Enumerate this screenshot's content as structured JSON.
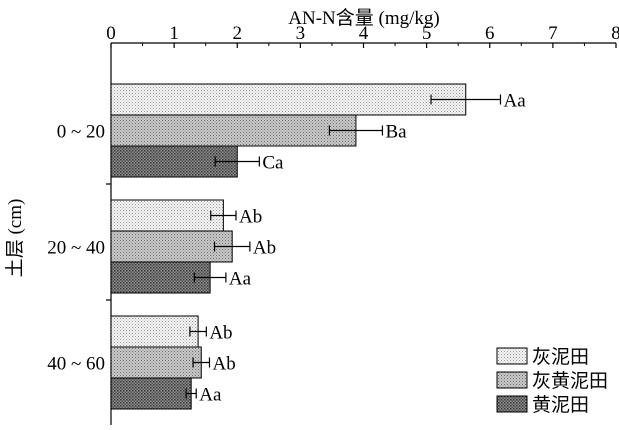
{
  "chart_data": {
    "type": "bar",
    "orientation": "horizontal",
    "title": "",
    "xlabel": "AN-N含量 (mg/kg)",
    "ylabel": "土层 (cm)",
    "xlim": [
      0,
      8
    ],
    "xticks": [
      "0",
      "1",
      "2",
      "3",
      "4",
      "5",
      "6",
      "7",
      "8"
    ],
    "categories": [
      "0 ~ 20",
      "20 ~ 40",
      "40 ~ 60"
    ],
    "series": [
      {
        "name": "灰泥田",
        "pattern": "light",
        "values": [
          5.62,
          1.78,
          1.38
        ],
        "errors": [
          0.55,
          0.2,
          0.13
        ],
        "labels": [
          "Aa",
          "Ab",
          "Ab"
        ]
      },
      {
        "name": "灰黄泥田",
        "pattern": "medium",
        "values": [
          3.88,
          1.92,
          1.43
        ],
        "errors": [
          0.42,
          0.28,
          0.13
        ],
        "labels": [
          "Ba",
          "Ab",
          "Ab"
        ]
      },
      {
        "name": "黄泥田",
        "pattern": "dark",
        "values": [
          2.0,
          1.57,
          1.27
        ],
        "errors": [
          0.35,
          0.25,
          0.08
        ],
        "labels": [
          "Ca",
          "Aa",
          "Aa"
        ]
      }
    ],
    "legend_position": "bottom-right",
    "grid": false
  }
}
